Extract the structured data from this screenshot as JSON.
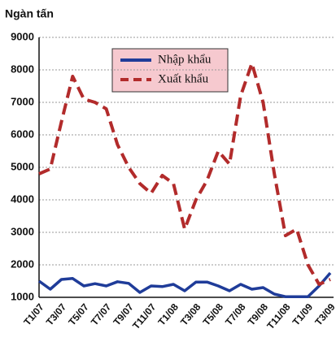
{
  "chart_data": {
    "type": "line",
    "y_label": "Ngàn tấn",
    "categories": [
      "T1/07",
      null,
      "T3/07",
      null,
      "T5/07",
      null,
      "T7/07",
      null,
      "T9/07",
      null,
      "T11/07",
      null,
      "T1/08",
      null,
      "T3/08",
      null,
      "T5/08",
      null,
      "T7/08",
      null,
      "T9/08",
      null,
      "T11/08",
      null,
      "T1/09",
      null,
      "T3/09"
    ],
    "series": [
      {
        "name": "Nhập khẩu",
        "color": "#1f3c99",
        "style": "solid",
        "values": [
          1500,
          1250,
          1550,
          1580,
          1350,
          1420,
          1350,
          1480,
          1430,
          1150,
          1350,
          1330,
          1400,
          1200,
          1470,
          1470,
          1350,
          1200,
          1400,
          1250,
          1300,
          1100,
          1020,
          1020,
          1020,
          1350,
          1750
        ]
      },
      {
        "name": "Xuất khẩu",
        "color": "#b22b2b",
        "style": "dashed",
        "values": [
          4800,
          4950,
          6400,
          7800,
          7100,
          7000,
          6800,
          5700,
          5000,
          4500,
          4200,
          4750,
          4500,
          3100,
          4000,
          4600,
          5500,
          5100,
          7200,
          8200,
          7000,
          4800,
          2900,
          3100,
          2000,
          1400,
          1550
        ]
      }
    ],
    "ylim": [
      1000,
      9000
    ],
    "yticks": [
      1000,
      2000,
      3000,
      4000,
      5000,
      6000,
      7000,
      8000,
      9000
    ],
    "grid": true
  }
}
